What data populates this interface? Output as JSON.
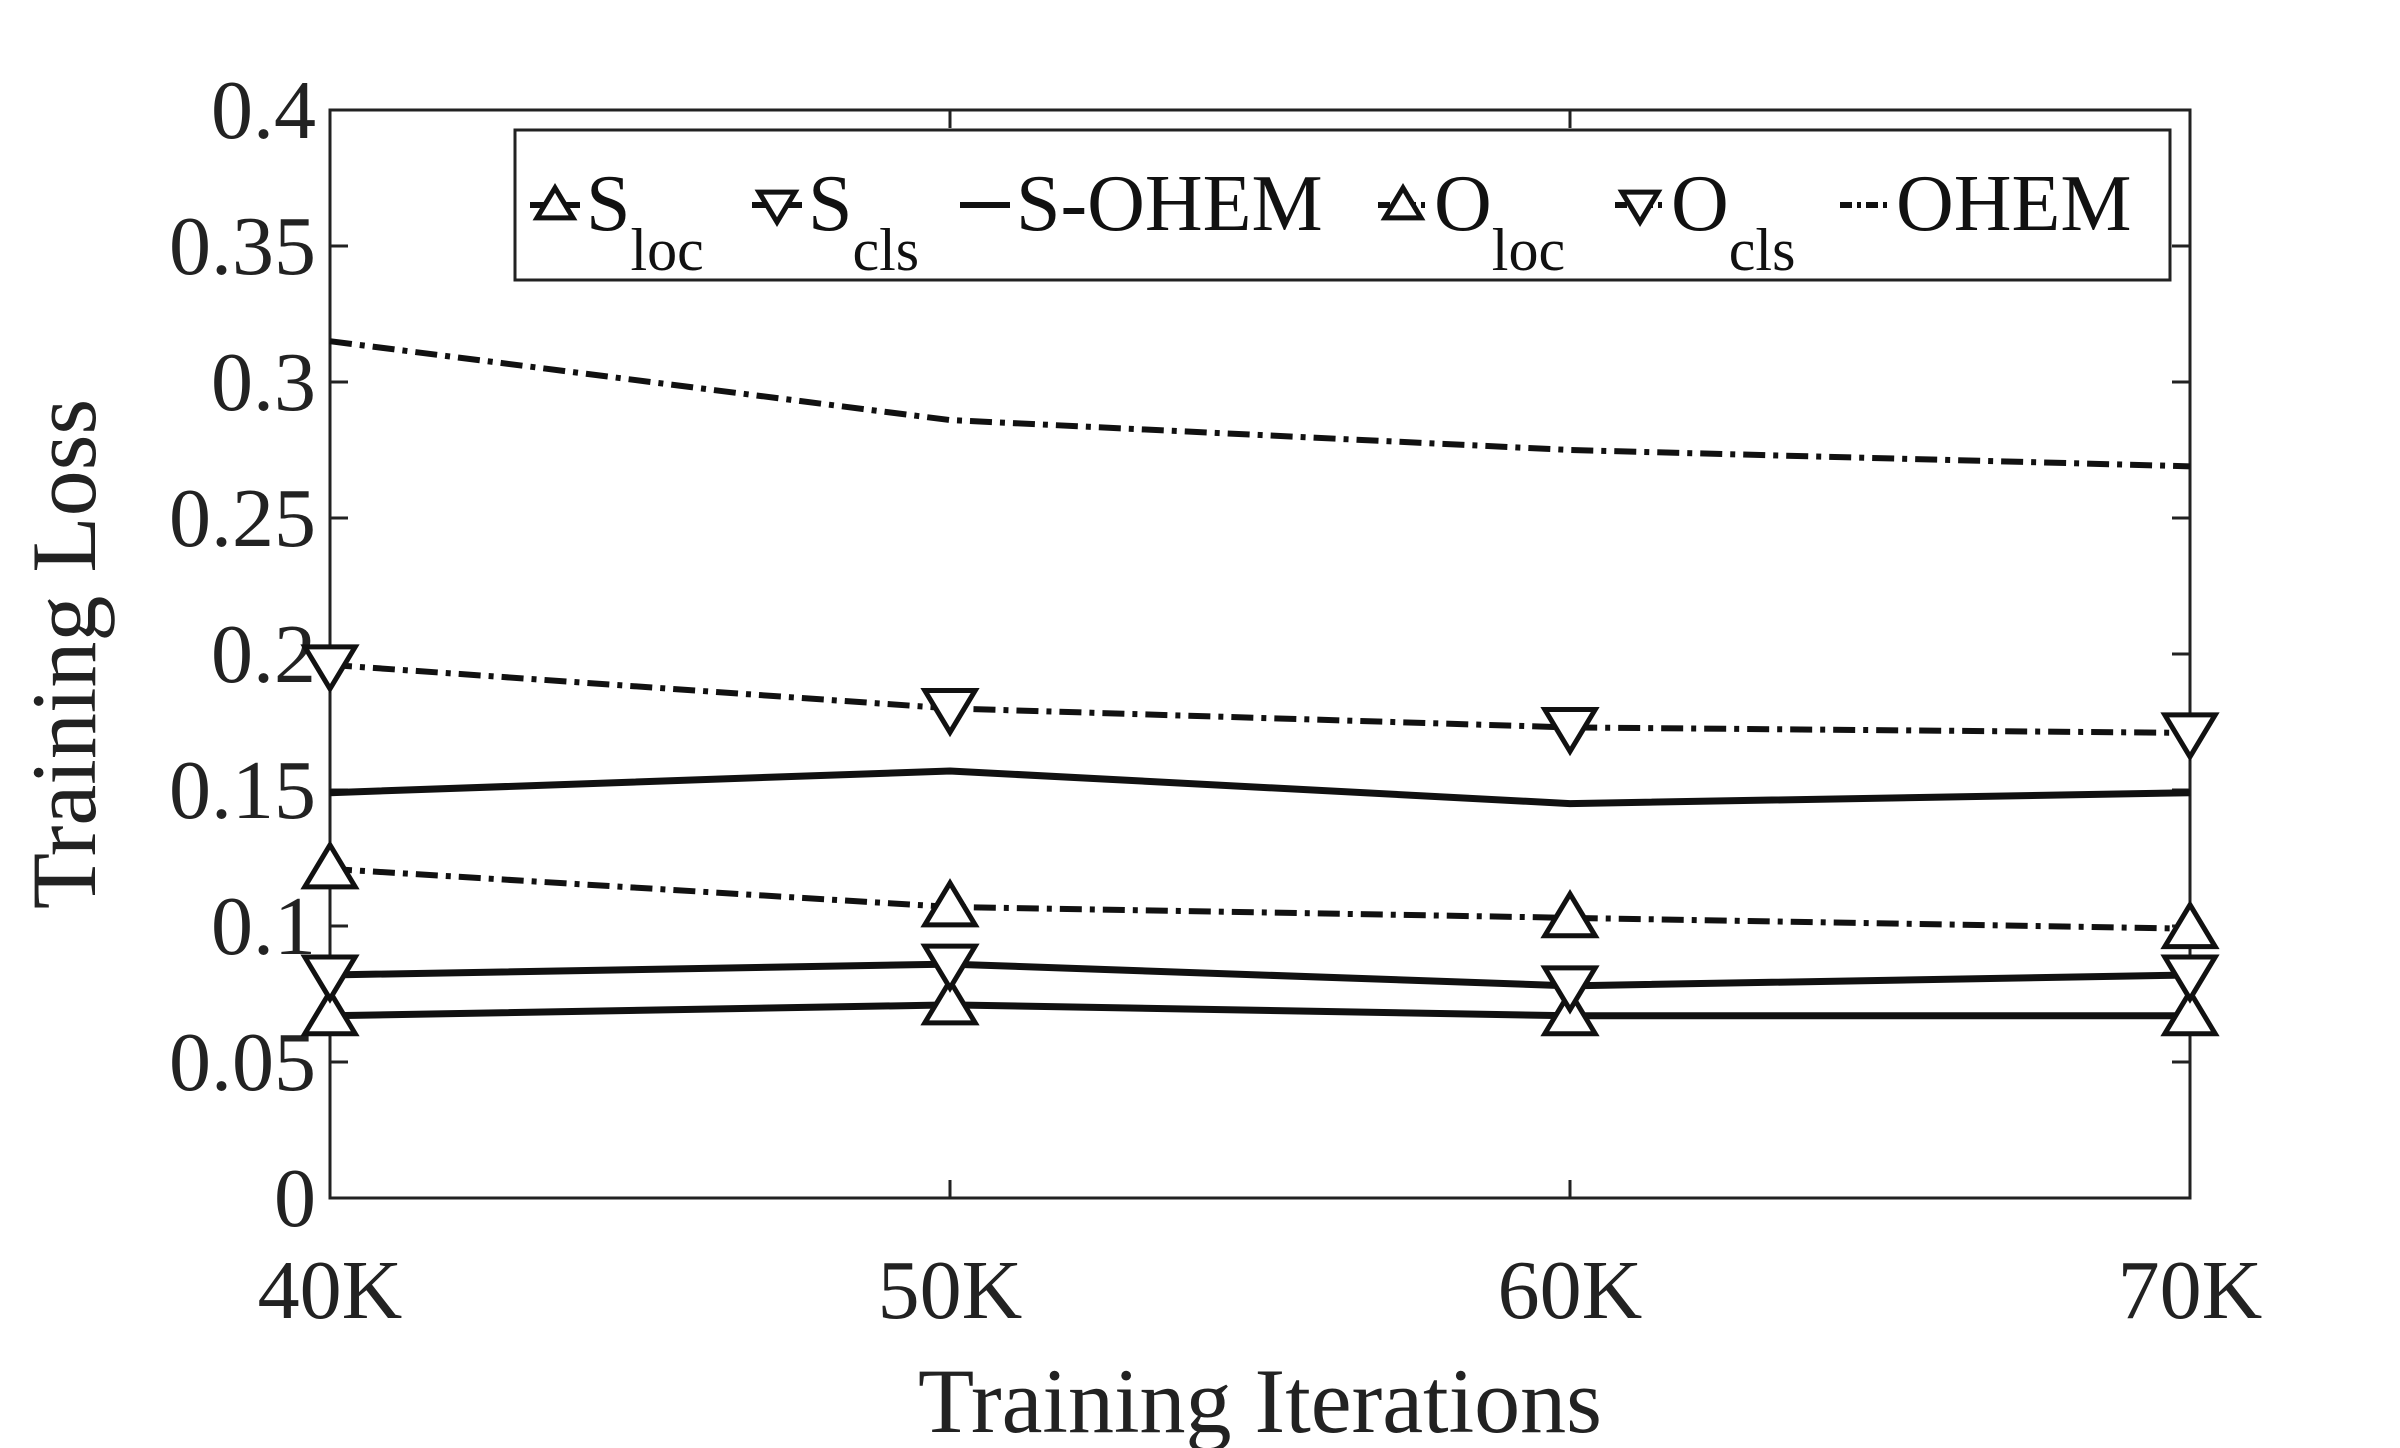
{
  "chart_data": {
    "type": "line",
    "title": "",
    "xlabel": "Training Iterations",
    "ylabel": "Training Loss",
    "categories": [
      "40K",
      "50K",
      "60K",
      "70K"
    ],
    "ylim": [
      0,
      0.4
    ],
    "yticks": [
      "0",
      "0.05",
      "0.1",
      "0.15",
      "0.2",
      "0.25",
      "0.3",
      "0.35",
      "0.4"
    ],
    "grid": false,
    "legend_position": "top",
    "series": [
      {
        "name": "S",
        "sub": "loc",
        "style": "solid",
        "marker": "triangle-up",
        "values": [
          0.067,
          0.071,
          0.067,
          0.067
        ]
      },
      {
        "name": "S",
        "sub": "cls",
        "style": "solid",
        "marker": "triangle-down",
        "values": [
          0.082,
          0.086,
          0.078,
          0.082
        ]
      },
      {
        "name": "S-OHEM",
        "sub": "",
        "style": "solid",
        "marker": "none",
        "values": [
          0.149,
          0.157,
          0.145,
          0.149
        ]
      },
      {
        "name": "O",
        "sub": "loc",
        "style": "dashdot",
        "marker": "triangle-up",
        "values": [
          0.121,
          0.107,
          0.103,
          0.099
        ]
      },
      {
        "name": "O",
        "sub": "cls",
        "style": "dashdot",
        "marker": "triangle-down",
        "values": [
          0.196,
          0.18,
          0.173,
          0.171
        ]
      },
      {
        "name": "OHEM",
        "sub": "",
        "style": "dashdot",
        "marker": "none",
        "values": [
          0.315,
          0.286,
          0.275,
          0.269
        ]
      }
    ],
    "colors": {
      "line": "#111111",
      "axis": "#222222"
    }
  }
}
